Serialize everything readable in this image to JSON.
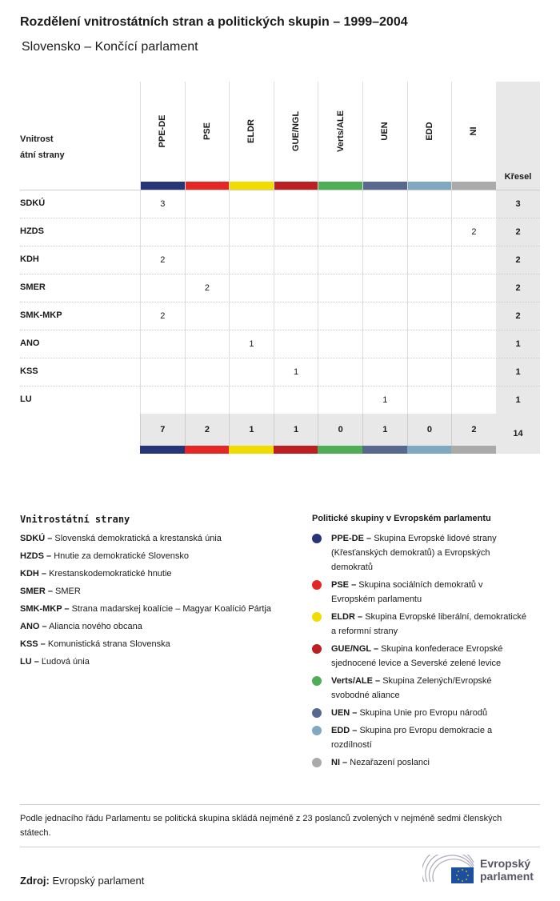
{
  "title": "Rozdělení vnitrostátních stran a politických skupin – 1999–2004",
  "subtitle": "Slovensko – Končící parlament",
  "table": {
    "party_header": "Vnitrost átní strany",
    "seats_header": "Křesel",
    "groups": [
      {
        "code": "PPE-DE",
        "color": "#263478"
      },
      {
        "code": "PSE",
        "color": "#e42625"
      },
      {
        "code": "ELDR",
        "color": "#f0dc00"
      },
      {
        "code": "GUE/NGL",
        "color": "#bd1e22"
      },
      {
        "code": "Verts/ALE",
        "color": "#4fad55"
      },
      {
        "code": "UEN",
        "color": "#58688f"
      },
      {
        "code": "EDD",
        "color": "#7fa9c1"
      },
      {
        "code": "NI",
        "color": "#aaaaaa"
      }
    ],
    "rows": [
      {
        "party": "SDKÚ",
        "values": [
          "3",
          "",
          "",
          "",
          "",
          "",
          "",
          ""
        ],
        "total": "3"
      },
      {
        "party": "HZDS",
        "values": [
          "",
          "",
          "",
          "",
          "",
          "",
          "",
          "2"
        ],
        "total": "2"
      },
      {
        "party": "KDH",
        "values": [
          "2",
          "",
          "",
          "",
          "",
          "",
          "",
          ""
        ],
        "total": "2"
      },
      {
        "party": "SMER",
        "values": [
          "",
          "2",
          "",
          "",
          "",
          "",
          "",
          ""
        ],
        "total": "2"
      },
      {
        "party": "SMK-MKP",
        "values": [
          "2",
          "",
          "",
          "",
          "",
          "",
          "",
          ""
        ],
        "total": "2"
      },
      {
        "party": "ANO",
        "values": [
          "",
          "",
          "1",
          "",
          "",
          "",
          "",
          ""
        ],
        "total": "1"
      },
      {
        "party": "KSS",
        "values": [
          "",
          "",
          "",
          "1",
          "",
          "",
          "",
          ""
        ],
        "total": "1"
      },
      {
        "party": "LU",
        "values": [
          "",
          "",
          "",
          "",
          "",
          "1",
          "",
          ""
        ],
        "total": "1"
      }
    ],
    "totals": [
      "7",
      "2",
      "1",
      "1",
      "0",
      "1",
      "0",
      "2"
    ],
    "grand_total": "14"
  },
  "legend_parties": {
    "title": "Vnitrostátní strany",
    "items": [
      {
        "abbr": "SDKÚ –",
        "name": "Slovenská demokratická a krestanská únia"
      },
      {
        "abbr": "HZDS –",
        "name": "Hnutie za demokratické Slovensko"
      },
      {
        "abbr": "KDH –",
        "name": "Krestanskodemokratické hnutie"
      },
      {
        "abbr": "SMER –",
        "name": "SMER"
      },
      {
        "abbr": "SMK-MKP –",
        "name": "Strana madarskej koalície – Magyar Koalíció Pártja"
      },
      {
        "abbr": "ANO –",
        "name": "Aliancia nového obcana"
      },
      {
        "abbr": "KSS –",
        "name": "Komunistická strana Slovenska"
      },
      {
        "abbr": "LU –",
        "name": "Ľudová únia"
      }
    ]
  },
  "legend_groups": {
    "title": "Politické skupiny v Evropském parlamentu",
    "items": [
      {
        "abbr": "PPE-DE –",
        "name": "Skupina Evropské lidové strany (Křesťanských demokratů) a Evropských demokratů"
      },
      {
        "abbr": "PSE –",
        "name": "Skupina sociálních demokratů v Evropském parlamentu"
      },
      {
        "abbr": "ELDR –",
        "name": "Skupina Evropské liberální, demokratické a reformní strany"
      },
      {
        "abbr": "GUE/NGL –",
        "name": "Skupina konfederace Evropské sjednocené levice a Severské zelené levice"
      },
      {
        "abbr": "Verts/ALE –",
        "name": "Skupina Zelených/Evropské svobodné aliance"
      },
      {
        "abbr": "UEN –",
        "name": "Skupina Unie pro Evropu národů"
      },
      {
        "abbr": "EDD –",
        "name": "Skupina pro Evropu demokracie a rozdílností"
      },
      {
        "abbr": "NI –",
        "name": "Nezařazení poslanci"
      }
    ]
  },
  "note": "Podle jednacího řádu Parlamentu se politická skupina skládá nejméně z 23 poslanců zvolených v nejméně sedmi členských státech.",
  "source": {
    "label": "Zdroj:",
    "value": "Evropský parlament"
  },
  "logo": {
    "line1": "Evropský",
    "line2": "parlament"
  }
}
